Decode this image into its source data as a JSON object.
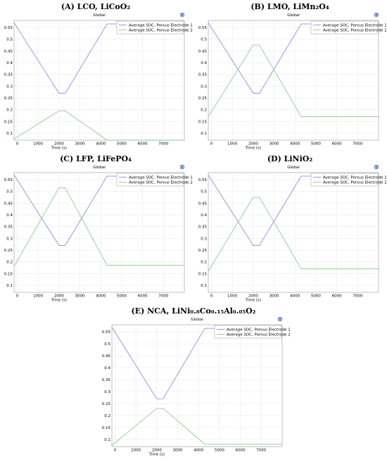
{
  "colors": {
    "electrode1": "#8080e0",
    "electrode2": "#80c880",
    "grid": "#e6e6e6",
    "axis": "#9a9a9a",
    "icon": "#4a6fb0"
  },
  "icon": "globe-icon",
  "chart_data": [
    {
      "type": "line",
      "title": "(A) LCO, LiCoO₂",
      "subtitle": "Global",
      "xlabel": "Time (s)",
      "ylabel": "",
      "xlim": [
        -150,
        8000
      ],
      "ylim": [
        0.07,
        0.58
      ],
      "xticks": [
        0,
        1000,
        2000,
        3000,
        4000,
        5000,
        6000,
        7000
      ],
      "yticks": [
        0.1,
        0.15,
        0.2,
        0.25,
        0.3,
        0.35,
        0.4,
        0.45,
        0.5,
        0.55
      ],
      "ytick_labels": [
        "0.1",
        "0.15",
        "0.2",
        "0.25",
        "0.3",
        "0.35",
        "0.4",
        "0.45",
        "0.5",
        "0.55"
      ],
      "xtick_labels": [
        "0",
        "1000",
        "2000",
        "3000",
        "4000",
        "5000",
        "6000",
        "7000"
      ],
      "legend_position": "top-right",
      "series": [
        {
          "name": "Average SOC, Porous Electrode 1",
          "x": [
            -150,
            2000,
            2300,
            4300,
            8000
          ],
          "y": [
            0.57,
            0.27,
            0.27,
            0.565,
            0.565
          ]
        },
        {
          "name": "Average SOC, Porous Electrode 2",
          "x": [
            -150,
            2000,
            2300,
            4300,
            8000
          ],
          "y": [
            0.075,
            0.195,
            0.195,
            0.07,
            0.07
          ]
        }
      ]
    },
    {
      "type": "line",
      "title": "(B) LMO, LiMn₂O₄",
      "subtitle": "Global",
      "xlabel": "Time (s)",
      "ylabel": "",
      "xlim": [
        -150,
        8000
      ],
      "ylim": [
        0.07,
        0.58
      ],
      "xticks": [
        0,
        1000,
        2000,
        3000,
        4000,
        5000,
        6000,
        7000
      ],
      "yticks": [
        0.1,
        0.15,
        0.2,
        0.25,
        0.3,
        0.35,
        0.4,
        0.45,
        0.5,
        0.55
      ],
      "ytick_labels": [
        "0.1",
        "0.15",
        "0.2",
        "0.25",
        "0.3",
        "0.35",
        "0.4",
        "0.45",
        "0.5",
        "0.55"
      ],
      "xtick_labels": [
        "0",
        "1000",
        "2000",
        "3000",
        "4000",
        "5000",
        "6000",
        "7000"
      ],
      "legend_position": "top-right",
      "series": [
        {
          "name": "Average SOC, Porous Electrode 1",
          "x": [
            -150,
            2000,
            2300,
            4300,
            8000
          ],
          "y": [
            0.57,
            0.27,
            0.27,
            0.565,
            0.565
          ]
        },
        {
          "name": "Average SOC, Porous Electrode 2",
          "x": [
            -150,
            2000,
            2300,
            4300,
            8000
          ],
          "y": [
            0.17,
            0.475,
            0.475,
            0.17,
            0.17
          ]
        }
      ]
    },
    {
      "type": "line",
      "title": "(C) LFP, LiFePO₄",
      "subtitle": "Global",
      "xlabel": "Time (s)",
      "ylabel": "",
      "xlim": [
        -150,
        8000
      ],
      "ylim": [
        0.07,
        0.58
      ],
      "xticks": [
        0,
        1000,
        2000,
        3000,
        4000,
        5000,
        6000,
        7000
      ],
      "yticks": [
        0.1,
        0.15,
        0.2,
        0.25,
        0.3,
        0.35,
        0.4,
        0.45,
        0.5,
        0.55
      ],
      "ytick_labels": [
        "0.1",
        "0.15",
        "0.2",
        "0.25",
        "0.3",
        "0.35",
        "0.4",
        "0.45",
        "0.5",
        "0.55"
      ],
      "xtick_labels": [
        "0",
        "1000",
        "2000",
        "3000",
        "4000",
        "5000",
        "6000",
        "7000"
      ],
      "legend_position": "top-right",
      "series": [
        {
          "name": "Average SOC, Porous Electrode 1",
          "x": [
            -150,
            2000,
            2300,
            4300,
            8000
          ],
          "y": [
            0.57,
            0.27,
            0.27,
            0.565,
            0.565
          ]
        },
        {
          "name": "Average SOC, Porous Electrode 2",
          "x": [
            -150,
            2000,
            2300,
            4300,
            8000
          ],
          "y": [
            0.18,
            0.515,
            0.515,
            0.185,
            0.185
          ]
        }
      ]
    },
    {
      "type": "line",
      "title": "(D) LiNiO₂",
      "subtitle": "Global",
      "xlabel": "Time (s)",
      "ylabel": "",
      "xlim": [
        -150,
        8000
      ],
      "ylim": [
        0.07,
        0.58
      ],
      "xticks": [
        0,
        1000,
        2000,
        3000,
        4000,
        5000,
        6000,
        7000
      ],
      "yticks": [
        0.1,
        0.15,
        0.2,
        0.25,
        0.3,
        0.35,
        0.4,
        0.45,
        0.5,
        0.55
      ],
      "ytick_labels": [
        "0.1",
        "0.15",
        "0.2",
        "0.25",
        "0.3",
        "0.35",
        "0.4",
        "0.45",
        "0.5",
        "0.55"
      ],
      "xtick_labels": [
        "0",
        "1000",
        "2000",
        "3000",
        "4000",
        "5000",
        "6000",
        "7000"
      ],
      "legend_position": "top-right",
      "series": [
        {
          "name": "Average SOC, Porous Electrode 1",
          "x": [
            -150,
            2000,
            2300,
            4300,
            8000
          ],
          "y": [
            0.57,
            0.27,
            0.27,
            0.565,
            0.565
          ]
        },
        {
          "name": "Average SOC, Porous Electrode 2",
          "x": [
            -150,
            2000,
            2300,
            4300,
            8000
          ],
          "y": [
            0.16,
            0.475,
            0.475,
            0.17,
            0.17
          ]
        }
      ]
    },
    {
      "type": "line",
      "title": "(E) NCA, LiNi₀.₈Co₀.₁₅Al₀.₀₅O₂",
      "subtitle": "Global",
      "xlabel": "Time (s)",
      "ylabel": "",
      "xlim": [
        -150,
        8000
      ],
      "ylim": [
        0.07,
        0.58
      ],
      "xticks": [
        0,
        1000,
        2000,
        3000,
        4000,
        5000,
        6000,
        7000
      ],
      "yticks": [
        0.1,
        0.15,
        0.2,
        0.25,
        0.3,
        0.35,
        0.4,
        0.45,
        0.5,
        0.55
      ],
      "ytick_labels": [
        "0.1",
        "0.15",
        "0.2",
        "0.25",
        "0.3",
        "0.35",
        "0.4",
        "0.45",
        "0.5",
        "0.55"
      ],
      "xtick_labels": [
        "0",
        "1000",
        "2000",
        "3000",
        "4000",
        "5000",
        "6000",
        "7000"
      ],
      "legend_position": "top-right",
      "series": [
        {
          "name": "Average SOC, Porous Electrode 1",
          "x": [
            -150,
            2000,
            2300,
            4300,
            8000
          ],
          "y": [
            0.57,
            0.27,
            0.27,
            0.565,
            0.565
          ]
        },
        {
          "name": "Average SOC, Porous Electrode 2",
          "x": [
            -150,
            2000,
            2300,
            4300,
            8000
          ],
          "y": [
            0.075,
            0.23,
            0.23,
            0.08,
            0.08
          ]
        }
      ]
    }
  ]
}
